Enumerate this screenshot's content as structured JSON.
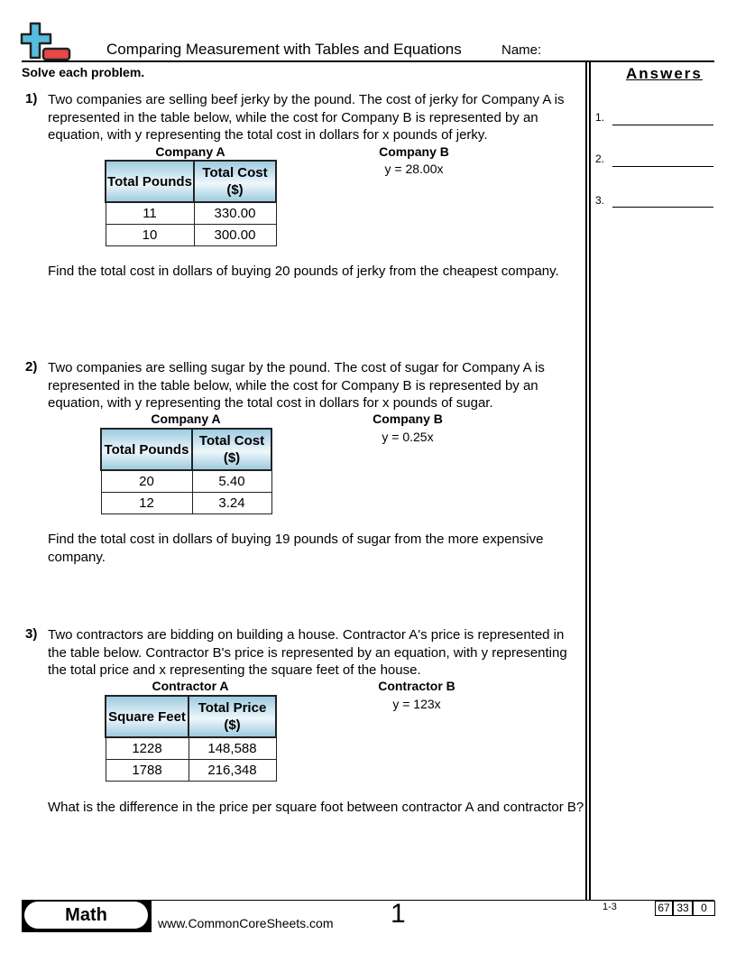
{
  "header": {
    "title": "Comparing Measurement with Tables and Equations",
    "name_label": "Name:",
    "instructions": "Solve each problem.",
    "answers_title": "Answers"
  },
  "answer_slots": [
    "1.",
    "2.",
    "3."
  ],
  "problems": [
    {
      "number": "1)",
      "text": "Two companies are selling beef jerky by the pound. The cost of jerky for Company A is represented in the table below, while the cost for Company B is represented by an equation, with y representing the total cost in dollars for x pounds of jerky.",
      "table_label": "Company A",
      "headers": [
        "Total Pounds",
        "Total Cost ($)"
      ],
      "rows": [
        [
          "11",
          "330.00"
        ],
        [
          "10",
          "300.00"
        ]
      ],
      "equation_label": "Company B",
      "equation": "y = 28.00x",
      "question": "Find the total cost in dollars of buying 20 pounds of jerky from the cheapest company."
    },
    {
      "number": "2)",
      "text": "Two companies are selling sugar by the pound. The cost of sugar for Company A is represented in the table below, while the cost for Company B is represented by an equation, with y representing the total cost in dollars for x pounds of sugar.",
      "table_label": "Company A",
      "headers": [
        "Total Pounds",
        "Total Cost ($)"
      ],
      "rows": [
        [
          "20",
          "5.40"
        ],
        [
          "12",
          "3.24"
        ]
      ],
      "equation_label": "Company B",
      "equation": "y = 0.25x",
      "question": "Find the total cost in dollars of buying 19 pounds of sugar from the more expensive company."
    },
    {
      "number": "3)",
      "text": "Two contractors are bidding on building a house. Contractor A's price is represented in the table below. Contractor B's price is represented by an equation, with y representing the total price and x representing the square feet of the house.",
      "table_label": "Contractor A",
      "headers": [
        "Square Feet",
        "Total Price ($)"
      ],
      "rows": [
        [
          "1228",
          "148,588"
        ],
        [
          "1788",
          "216,348"
        ]
      ],
      "equation_label": "Contractor B",
      "equation": "y = 123x",
      "question": "What is the difference in the price per square foot between contractor A and contractor B?"
    }
  ],
  "footer": {
    "subject": "Math",
    "url": "www.CommonCoreSheets.com",
    "page": "1",
    "range": "1-3",
    "scores": [
      "67",
      "33",
      "0"
    ]
  },
  "colors": {
    "logo_blue": "#56bde0",
    "logo_red": "#e84848",
    "table_header": "#9ecbe0"
  }
}
